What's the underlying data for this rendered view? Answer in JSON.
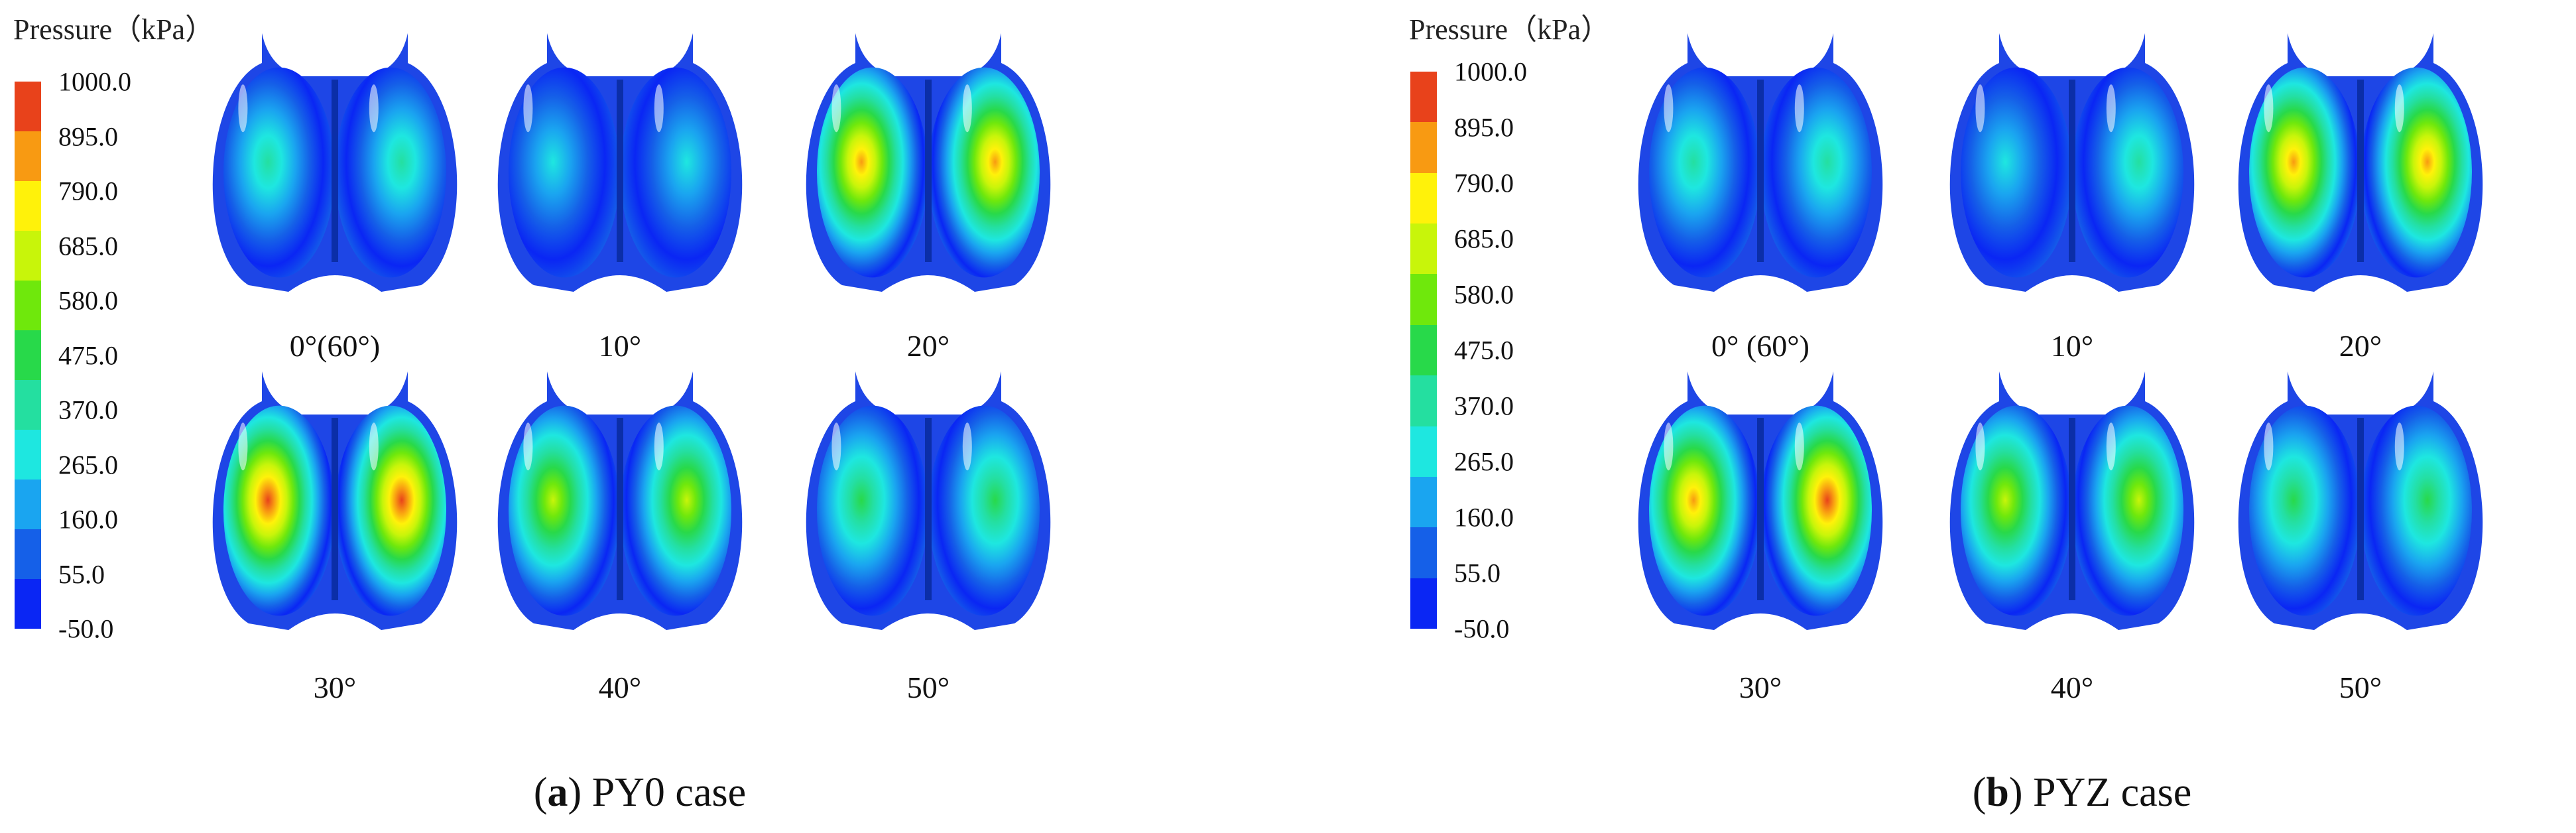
{
  "figures": [
    {
      "id": "a",
      "colorbar": {
        "title": "Pressure（kPa）",
        "ticks": [
          "1000.0",
          "895.0",
          "790.0",
          "685.0",
          "580.0",
          "475.0",
          "370.0",
          "265.0",
          "160.0",
          "55.0",
          "-50.0"
        ],
        "colors": [
          "#e8421b",
          "#f89a12",
          "#fff20a",
          "#c8f50a",
          "#6fe80c",
          "#28d94a",
          "#24dfa0",
          "#1ee7e0",
          "#1aa5f0",
          "#1560e8",
          "#0a26f4"
        ]
      },
      "chambers": [
        {
          "label": "0°(60°)",
          "hot": [
            0.38,
            0.4
          ]
        },
        {
          "label": "10°",
          "hot": [
            0.3,
            0.28
          ]
        },
        {
          "label": "20°",
          "hot": [
            0.88,
            0.86
          ]
        },
        {
          "label": "30°",
          "hot": [
            0.96,
            0.95
          ]
        },
        {
          "label": "40°",
          "hot": [
            0.72,
            0.7
          ]
        },
        {
          "label": "50°",
          "hot": [
            0.48,
            0.5
          ]
        }
      ],
      "caption": {
        "letter": "a",
        "text": " PY0 case"
      }
    },
    {
      "id": "b",
      "colorbar": {
        "title": "Pressure（kPa）",
        "ticks": [
          "1000.0",
          "895.0",
          "790.0",
          "685.0",
          "580.0",
          "475.0",
          "370.0",
          "265.0",
          "160.0",
          "55.0",
          "-50.0"
        ],
        "colors": [
          "#e8421b",
          "#f89a12",
          "#fff20a",
          "#c8f50a",
          "#6fe80c",
          "#28d94a",
          "#24dfa0",
          "#1ee7e0",
          "#1aa5f0",
          "#1560e8",
          "#0a26f4"
        ]
      },
      "chambers": [
        {
          "label": "0° (60°)",
          "hot": [
            0.36,
            0.38
          ]
        },
        {
          "label": "10°",
          "hot": [
            0.34,
            0.36
          ]
        },
        {
          "label": "20°",
          "hot": [
            0.86,
            0.88
          ]
        },
        {
          "label": "30°",
          "hot": [
            0.94,
            0.96
          ]
        },
        {
          "label": "40°",
          "hot": [
            0.7,
            0.72
          ]
        },
        {
          "label": "50°",
          "hot": [
            0.5,
            0.48
          ]
        }
      ],
      "caption": {
        "letter": "b",
        "text": " PYZ case"
      }
    }
  ]
}
